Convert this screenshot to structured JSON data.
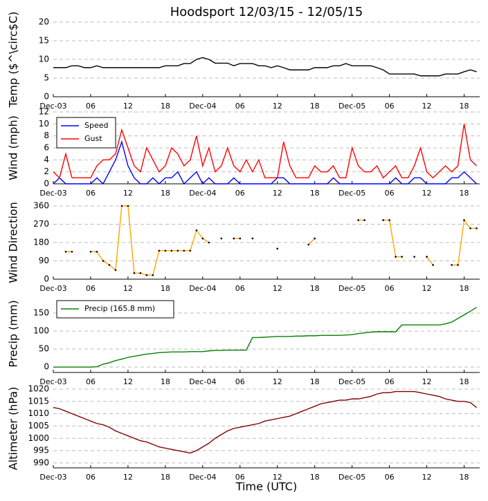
{
  "chart_data": [
    {
      "type": "line",
      "title": "Hoodsport 12/03/15 - 12/05/15",
      "ylabel": "Temp ($^\\circ$C)",
      "grid": true,
      "x": [
        0,
        1,
        2,
        3,
        4,
        5,
        6,
        7,
        8,
        9,
        10,
        11,
        12,
        13,
        14,
        15,
        16,
        17,
        18,
        19,
        20,
        21,
        22,
        23,
        24,
        25,
        26,
        27,
        28,
        29,
        30,
        31,
        32,
        33,
        34,
        35,
        36,
        37,
        38,
        39,
        40,
        41,
        42,
        43,
        44,
        45,
        46,
        47,
        48,
        49,
        50,
        51,
        52,
        53,
        54,
        55,
        56,
        57,
        58,
        59,
        60,
        61,
        62,
        63,
        64,
        65,
        66,
        67,
        68
      ],
      "series": [
        {
          "color": "#000000",
          "values": [
            7.8,
            7.8,
            7.8,
            8.3,
            8.3,
            7.8,
            7.8,
            8.3,
            7.8,
            7.8,
            7.8,
            7.8,
            7.8,
            7.8,
            7.8,
            7.8,
            7.8,
            7.8,
            8.3,
            8.3,
            8.3,
            8.9,
            8.9,
            10,
            10.5,
            10,
            9,
            9,
            9,
            8.3,
            8.9,
            8.9,
            8.9,
            8.3,
            8.3,
            7.8,
            8.3,
            7.8,
            7.2,
            7.2,
            7.2,
            7.2,
            7.8,
            7.8,
            7.8,
            8.3,
            8.3,
            8.9,
            8.3,
            8.3,
            8.3,
            8.3,
            7.8,
            7.2,
            6.1,
            6.1,
            6.1,
            6.1,
            6.1,
            5.6,
            5.6,
            5.6,
            5.6,
            6.1,
            6.1,
            6.1,
            6.7,
            7.2,
            6.7
          ]
        }
      ],
      "xlim": [
        0,
        68.5
      ],
      "xticks": [
        {
          "value": 0,
          "label": "Dec-03"
        },
        {
          "value": 6,
          "label": "06"
        },
        {
          "value": 12,
          "label": "12"
        },
        {
          "value": 18,
          "label": "18"
        },
        {
          "value": 24,
          "label": "Dec-04"
        },
        {
          "value": 30,
          "label": "06"
        },
        {
          "value": 36,
          "label": "12"
        },
        {
          "value": 42,
          "label": "18"
        },
        {
          "value": 48,
          "label": "Dec-05"
        },
        {
          "value": 54,
          "label": "06"
        },
        {
          "value": 60,
          "label": "12"
        },
        {
          "value": 66,
          "label": "18"
        }
      ],
      "ylim": [
        0,
        20
      ],
      "yticks": [
        0,
        5,
        10,
        15,
        20
      ]
    },
    {
      "type": "line",
      "ylabel": "Wind (mph)",
      "grid": true,
      "legend": "upper left",
      "x": [
        0,
        1,
        2,
        3,
        4,
        5,
        6,
        7,
        8,
        9,
        10,
        11,
        12,
        13,
        14,
        15,
        16,
        17,
        18,
        19,
        20,
        21,
        22,
        23,
        24,
        25,
        26,
        27,
        28,
        29,
        30,
        31,
        32,
        33,
        34,
        35,
        36,
        37,
        38,
        39,
        40,
        41,
        42,
        43,
        44,
        45,
        46,
        47,
        48,
        49,
        50,
        51,
        52,
        53,
        54,
        55,
        56,
        57,
        58,
        59,
        60,
        61,
        62,
        63,
        64,
        65,
        66,
        67,
        68
      ],
      "series": [
        {
          "name": "Speed",
          "color": "#0000ff",
          "values": [
            0,
            1,
            0,
            0,
            0,
            0,
            0,
            1,
            0,
            2,
            4,
            7,
            3,
            1,
            0,
            0,
            1,
            0,
            1,
            1,
            2,
            0,
            1,
            2,
            0,
            1,
            0,
            0,
            0,
            1,
            0,
            0,
            0,
            0,
            0,
            0,
            1,
            1,
            0,
            0,
            0,
            0,
            0,
            0,
            0,
            1,
            0,
            0,
            0,
            0,
            0,
            0,
            0,
            0,
            0,
            1,
            0,
            0,
            1,
            1,
            0,
            0,
            0,
            0,
            1,
            1,
            2,
            1,
            0
          ]
        },
        {
          "name": "Gust",
          "color": "#ff0000",
          "values": [
            2,
            1,
            5,
            1,
            1,
            1,
            1,
            3,
            4,
            4,
            5,
            9,
            6,
            3,
            2,
            6,
            4,
            2,
            3,
            6,
            5,
            3,
            4,
            8,
            3,
            6,
            2,
            3,
            6,
            3,
            2,
            4,
            2,
            4,
            1,
            1,
            1,
            7,
            3,
            1,
            1,
            1,
            3,
            2,
            2,
            3,
            1,
            1,
            6,
            3,
            2,
            2,
            3,
            1,
            2,
            3,
            1,
            1,
            3,
            6,
            2,
            1,
            2,
            3,
            2,
            3,
            10,
            4,
            3
          ]
        }
      ],
      "xlim": [
        0,
        68.5
      ],
      "xticks": [
        {
          "value": 0,
          "label": "Dec-03"
        },
        {
          "value": 6,
          "label": "06"
        },
        {
          "value": 12,
          "label": "12"
        },
        {
          "value": 18,
          "label": "18"
        },
        {
          "value": 24,
          "label": "Dec-04"
        },
        {
          "value": 30,
          "label": "06"
        },
        {
          "value": 36,
          "label": "12"
        },
        {
          "value": 42,
          "label": "18"
        },
        {
          "value": 48,
          "label": "Dec-05"
        },
        {
          "value": 54,
          "label": "06"
        },
        {
          "value": 60,
          "label": "12"
        },
        {
          "value": 66,
          "label": "18"
        }
      ],
      "ylim": [
        0,
        12
      ],
      "yticks": [
        0,
        2,
        4,
        6,
        8,
        10,
        12
      ]
    },
    {
      "type": "line",
      "ylabel": "Wind Direction",
      "grid": true,
      "x": [
        0,
        1,
        2,
        3,
        4,
        5,
        6,
        7,
        8,
        9,
        10,
        11,
        12,
        13,
        14,
        15,
        16,
        17,
        18,
        19,
        20,
        21,
        22,
        23,
        24,
        25,
        26,
        27,
        28,
        29,
        30,
        31,
        32,
        33,
        34,
        35,
        36,
        37,
        38,
        39,
        40,
        41,
        42,
        43,
        44,
        45,
        46,
        47,
        48,
        49,
        50,
        51,
        52,
        53,
        54,
        55,
        56,
        57,
        58,
        59,
        60,
        61,
        62,
        63,
        64,
        65,
        66,
        67,
        68
      ],
      "series": [
        {
          "color": "#ffa500",
          "marker_color": "#000000",
          "values": [
            null,
            null,
            135,
            135,
            null,
            null,
            135,
            135,
            90,
            70,
            45,
            360,
            360,
            30,
            30,
            20,
            20,
            140,
            140,
            140,
            140,
            140,
            140,
            240,
            200,
            180,
            null,
            200,
            null,
            200,
            200,
            null,
            200,
            null,
            null,
            null,
            150,
            null,
            null,
            null,
            null,
            170,
            200,
            null,
            null,
            null,
            null,
            null,
            null,
            290,
            290,
            null,
            null,
            290,
            290,
            110,
            110,
            null,
            110,
            null,
            110,
            70,
            null,
            null,
            70,
            70,
            290,
            250,
            250
          ]
        }
      ],
      "xlim": [
        0,
        68.5
      ],
      "xticks": [
        {
          "value": 0,
          "label": "Dec-03"
        },
        {
          "value": 6,
          "label": "06"
        },
        {
          "value": 12,
          "label": "12"
        },
        {
          "value": 18,
          "label": "18"
        },
        {
          "value": 24,
          "label": "Dec-04"
        },
        {
          "value": 30,
          "label": "06"
        },
        {
          "value": 36,
          "label": "12"
        },
        {
          "value": 42,
          "label": "18"
        },
        {
          "value": 48,
          "label": "Dec-05"
        },
        {
          "value": 54,
          "label": "06"
        },
        {
          "value": 60,
          "label": "12"
        },
        {
          "value": 66,
          "label": "18"
        }
      ],
      "ylim": [
        0,
        360
      ],
      "yticks": [
        0,
        90,
        180,
        270,
        360
      ]
    },
    {
      "type": "line",
      "ylabel": "Precip (mm)",
      "grid": true,
      "legend": "upper left",
      "x": [
        0,
        1,
        2,
        3,
        4,
        5,
        6,
        7,
        8,
        9,
        10,
        11,
        12,
        13,
        14,
        15,
        16,
        17,
        18,
        19,
        20,
        21,
        22,
        23,
        24,
        25,
        26,
        27,
        28,
        29,
        30,
        31,
        32,
        33,
        34,
        35,
        36,
        37,
        38,
        39,
        40,
        41,
        42,
        43,
        44,
        45,
        46,
        47,
        48,
        49,
        50,
        51,
        52,
        53,
        54,
        55,
        56,
        57,
        58,
        59,
        60,
        61,
        62,
        63,
        64,
        65,
        66,
        67,
        68
      ],
      "series": [
        {
          "name": "Precip (165.8 mm)",
          "color": "#008000",
          "values": [
            0,
            0,
            0,
            0,
            0,
            0,
            0,
            1,
            8,
            12,
            18,
            22,
            27,
            30,
            33,
            36,
            38,
            40,
            41,
            42,
            42,
            42,
            43,
            43,
            43,
            45,
            46,
            46,
            47,
            47,
            47,
            47,
            82,
            82,
            83,
            84,
            85,
            85,
            85,
            86,
            86,
            87,
            87,
            88,
            88,
            88,
            88,
            89,
            90,
            93,
            95,
            97,
            98,
            98,
            98,
            98,
            117,
            117,
            117,
            117,
            117,
            117,
            117,
            120,
            125,
            135,
            145,
            155,
            166
          ]
        }
      ],
      "xlim": [
        0,
        68.5
      ],
      "xticks": [
        {
          "value": 0,
          "label": "Dec-03"
        },
        {
          "value": 6,
          "label": "06"
        },
        {
          "value": 12,
          "label": "12"
        },
        {
          "value": 18,
          "label": "18"
        },
        {
          "value": 24,
          "label": "Dec-04"
        },
        {
          "value": 30,
          "label": "06"
        },
        {
          "value": 36,
          "label": "12"
        },
        {
          "value": 42,
          "label": "18"
        },
        {
          "value": 48,
          "label": "Dec-05"
        },
        {
          "value": 54,
          "label": "06"
        },
        {
          "value": 60,
          "label": "12"
        },
        {
          "value": 66,
          "label": "18"
        }
      ],
      "ylim": [
        -15,
        200
      ],
      "yticks": [
        0,
        50,
        100,
        150
      ]
    },
    {
      "type": "line",
      "ylabel": "Altimeter (hPa)",
      "xlabel": "Time (UTC)",
      "grid": true,
      "x": [
        0,
        1,
        2,
        3,
        4,
        5,
        6,
        7,
        8,
        9,
        10,
        11,
        12,
        13,
        14,
        15,
        16,
        17,
        18,
        19,
        20,
        21,
        22,
        23,
        24,
        25,
        26,
        27,
        28,
        29,
        30,
        31,
        32,
        33,
        34,
        35,
        36,
        37,
        38,
        39,
        40,
        41,
        42,
        43,
        44,
        45,
        46,
        47,
        48,
        49,
        50,
        51,
        52,
        53,
        54,
        55,
        56,
        57,
        58,
        59,
        60,
        61,
        62,
        63,
        64,
        65,
        66,
        67,
        68
      ],
      "series": [
        {
          "color": "#800000",
          "values": [
            1012.5,
            1012,
            1011,
            1010,
            1009,
            1008,
            1007,
            1006,
            1005.5,
            1004.5,
            1003,
            1002,
            1001,
            1000,
            999,
            998.5,
            997.5,
            996.5,
            996,
            995.5,
            995,
            994.5,
            994,
            995,
            996.5,
            998,
            1000,
            1001.5,
            1003,
            1004,
            1004.5,
            1005,
            1005.5,
            1006,
            1007,
            1007.5,
            1008,
            1008.5,
            1009,
            1010,
            1011,
            1012,
            1013,
            1014,
            1014.5,
            1015,
            1015.5,
            1015.5,
            1016,
            1016,
            1016.5,
            1017,
            1018,
            1018.5,
            1018.5,
            1019,
            1019,
            1019,
            1019,
            1018.5,
            1018,
            1017.5,
            1017,
            1016,
            1015.5,
            1015,
            1015,
            1014.5,
            1012.5
          ]
        }
      ],
      "xlim": [
        0,
        68.5
      ],
      "xticks": [
        {
          "value": 0,
          "label": "Dec-03"
        },
        {
          "value": 6,
          "label": "06"
        },
        {
          "value": 12,
          "label": "12"
        },
        {
          "value": 18,
          "label": "18"
        },
        {
          "value": 24,
          "label": "Dec-04"
        },
        {
          "value": 30,
          "label": "06"
        },
        {
          "value": 36,
          "label": "12"
        },
        {
          "value": 42,
          "label": "18"
        },
        {
          "value": 48,
          "label": "Dec-05"
        },
        {
          "value": 54,
          "label": "06"
        },
        {
          "value": 60,
          "label": "12"
        },
        {
          "value": 66,
          "label": "18"
        }
      ],
      "ylim": [
        988,
        1020
      ],
      "yticks": [
        990,
        995,
        1000,
        1005,
        1010,
        1015,
        1020
      ]
    }
  ]
}
